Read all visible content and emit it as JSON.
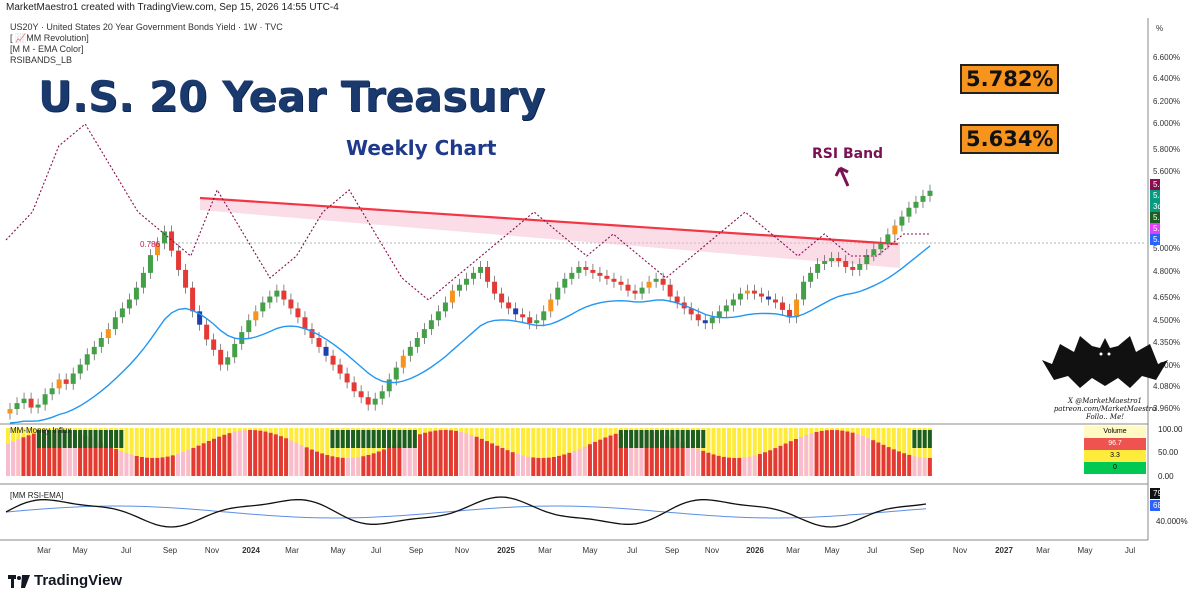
{
  "header": {
    "credit": "MarketMaestro1 created with TradingView.com, Sep 15, 2026 14:55 UTC-4"
  },
  "legend": {
    "symbol": "US20Y · United States 20 Year Government Bonds Yield · 1W · TVC",
    "indicators": [
      "[ 📈MM Revolution]",
      "[M M - EMA Color]",
      "RSIBANDS_LB"
    ]
  },
  "annotations": {
    "title": "U.S. 20 Year Treasury",
    "subtitle": "Weekly Chart",
    "target_high": "5.782%",
    "target_mid": "5.634%",
    "rsi_band": "RSI Band",
    "fib_label": "0.786"
  },
  "footer": {
    "brand": "TradingView"
  },
  "branding": {
    "handle": "X @MarketMaestro1",
    "site": "patreon.com/MarketMaestro",
    "follow": "Follo.. Me!"
  },
  "panes": {
    "money_flow": {
      "label": "MM-Money Influx",
      "vol_title": "Volume",
      "vol_values": [
        "96.7",
        "3.3",
        "0"
      ],
      "axis": [
        "100.00",
        "50.00",
        "0.00"
      ]
    },
    "rsi": {
      "label": "[MM RSI-EMA]",
      "rsi_value": "79.418%",
      "ema_value": "68.454%",
      "axis": [
        "40.000%"
      ]
    }
  },
  "price_tags": [
    {
      "text": "5.455%",
      "color": "#880e4f"
    },
    {
      "text": "5.407%",
      "color": "#089981"
    },
    {
      "text": "3d 3h",
      "color": "#089981"
    },
    {
      "text": "5.323029",
      "color": "#1b5e20"
    },
    {
      "text": "5.277721",
      "color": "#e040fb"
    },
    {
      "text": "5.140%",
      "color": "#2962ff"
    }
  ],
  "colors": {
    "up": "#26a69a",
    "down": "#ef5350",
    "ema": "#2196f3",
    "rsi_band": "#880e4f",
    "trendline": "#f23645",
    "callout": "#f7941d"
  },
  "chart_data": {
    "type": "candlestick",
    "title": "U.S. 20 Year Treasury",
    "subtitle": "Weekly Chart",
    "y_unit": "%",
    "y_ticks": [
      "6.600%",
      "6.400%",
      "6.200%",
      "6.000%",
      "5.800%",
      "5.600%",
      "5.000%",
      "4.800%",
      "4.650%",
      "4.500%",
      "4.350%",
      "4.200%",
      "4.080%",
      "3.960%"
    ],
    "x_ticks": [
      "Mar",
      "May",
      "Jul",
      "Sep",
      "Nov",
      "2024",
      "Mar",
      "May",
      "Jul",
      "Sep",
      "Nov",
      "2025",
      "Mar",
      "May",
      "Jul",
      "Sep",
      "Nov",
      "2026",
      "Mar",
      "May",
      "Jul",
      "Sep",
      "Nov",
      "2027",
      "Mar",
      "May",
      "Jul"
    ],
    "ylim": [
      3.9,
      6.7
    ],
    "close_series": [
      3.98,
      4.02,
      4.05,
      3.99,
      4.01,
      4.08,
      4.12,
      4.18,
      4.15,
      4.22,
      4.28,
      4.35,
      4.4,
      4.46,
      4.52,
      4.6,
      4.66,
      4.72,
      4.8,
      4.9,
      5.02,
      5.1,
      5.18,
      5.05,
      4.92,
      4.8,
      4.64,
      4.55,
      4.45,
      4.38,
      4.28,
      4.33,
      4.42,
      4.5,
      4.58,
      4.64,
      4.7,
      4.74,
      4.78,
      4.72,
      4.66,
      4.6,
      4.52,
      4.46,
      4.4,
      4.34,
      4.28,
      4.22,
      4.16,
      4.1,
      4.06,
      4.01,
      4.05,
      4.1,
      4.18,
      4.26,
      4.34,
      4.4,
      4.46,
      4.52,
      4.58,
      4.64,
      4.7,
      4.78,
      4.82,
      4.86,
      4.9,
      4.94,
      4.84,
      4.76,
      4.7,
      4.66,
      4.62,
      4.6,
      4.56,
      4.58,
      4.64,
      4.72,
      4.8,
      4.86,
      4.9,
      4.94,
      4.92,
      4.9,
      4.88,
      4.86,
      4.84,
      4.82,
      4.78,
      4.76,
      4.8,
      4.84,
      4.86,
      4.82,
      4.74,
      4.7,
      4.66,
      4.62,
      4.58,
      4.56,
      4.6,
      4.64,
      4.68,
      4.72,
      4.76,
      4.78,
      4.76,
      4.74,
      4.72,
      4.7,
      4.65,
      4.6,
      4.72,
      4.84,
      4.9,
      4.96,
      4.98,
      5.0,
      4.98,
      4.94,
      4.92,
      4.96,
      5.02,
      5.06,
      5.1,
      5.16,
      5.22,
      5.28,
      5.34,
      5.38,
      5.42,
      5.455
    ],
    "ema_series_note": "EMA drawn as smoothed close",
    "rsi_band_levels": [
      5.2,
      5.6,
      5.9,
      6.0,
      5.8,
      5.6,
      5.5,
      5.4,
      5.7,
      5.5,
      5.3,
      5.4,
      5.6,
      5.7,
      5.5,
      5.3,
      5.2,
      5.3,
      5.4,
      5.5,
      5.6,
      5.5,
      5.4,
      5.5,
      5.4,
      5.3,
      5.4,
      5.5,
      5.6,
      5.5,
      5.4,
      5.5,
      5.4,
      5.4,
      5.5,
      5.5
    ]
  }
}
